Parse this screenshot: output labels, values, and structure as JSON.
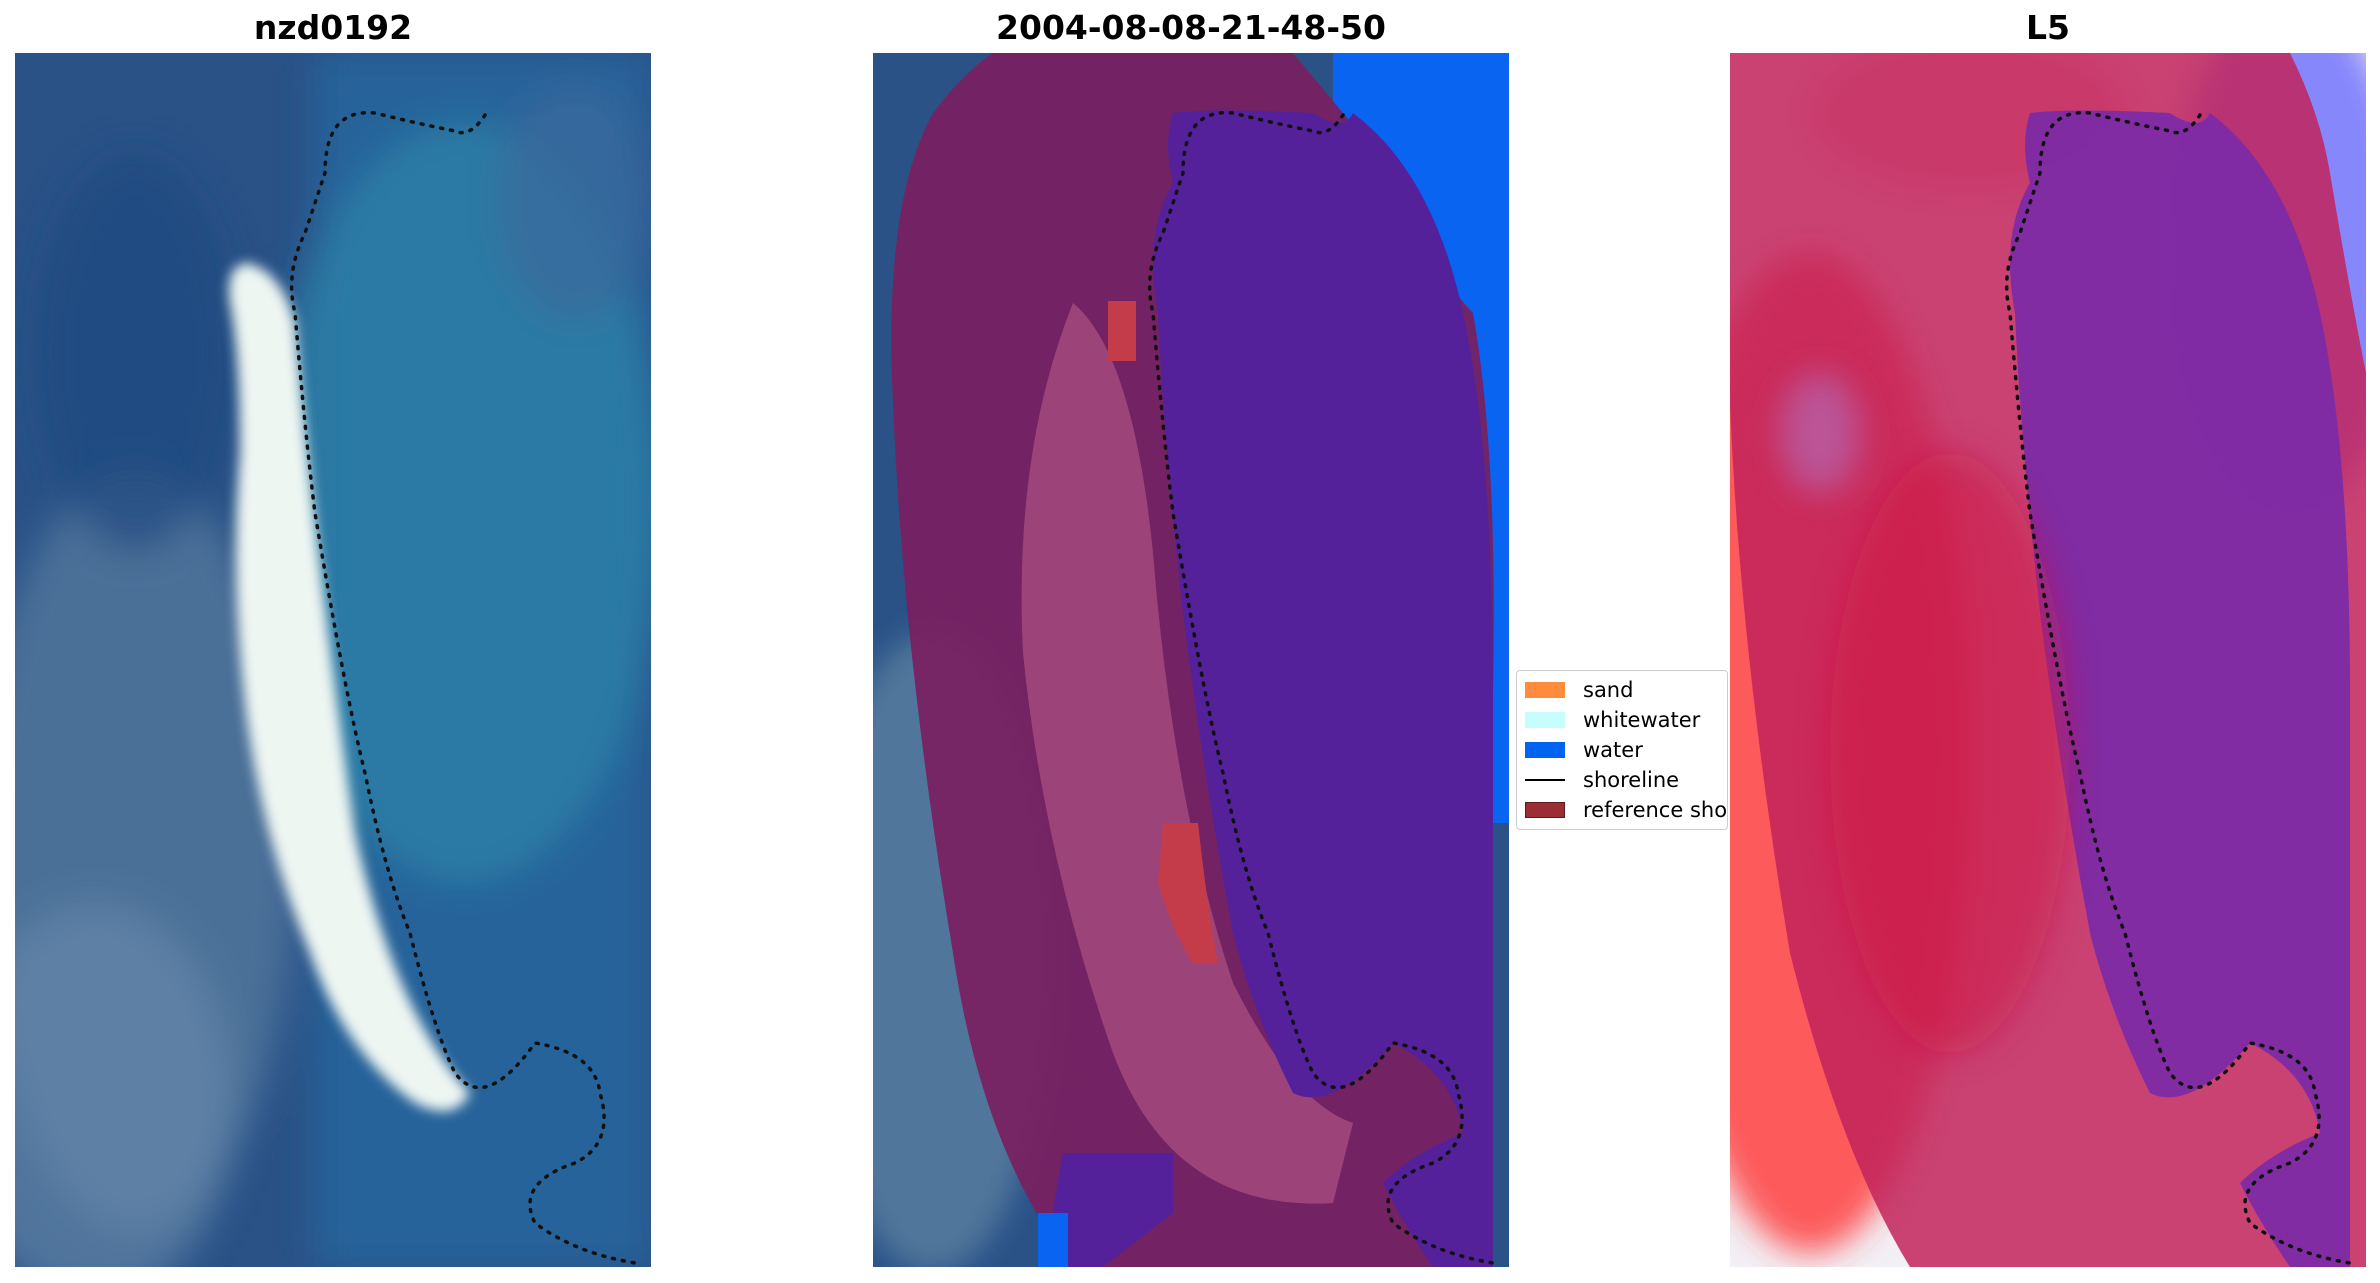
{
  "panels": [
    {
      "title": "nzd0192"
    },
    {
      "title": "2004-08-08-21-48-50"
    },
    {
      "title": "L5"
    }
  ],
  "legend": {
    "items": [
      {
        "label": "sand",
        "type": "patch",
        "color": "#ff8c3c"
      },
      {
        "label": "whitewater",
        "type": "patch",
        "color": "#c8fdfd"
      },
      {
        "label": "water",
        "type": "patch",
        "color": "#0064f0"
      },
      {
        "label": "shoreline",
        "type": "line",
        "color": "#000000"
      },
      {
        "label": "reference shoreline",
        "type": "patch",
        "color": "#9b2e34"
      }
    ]
  }
}
